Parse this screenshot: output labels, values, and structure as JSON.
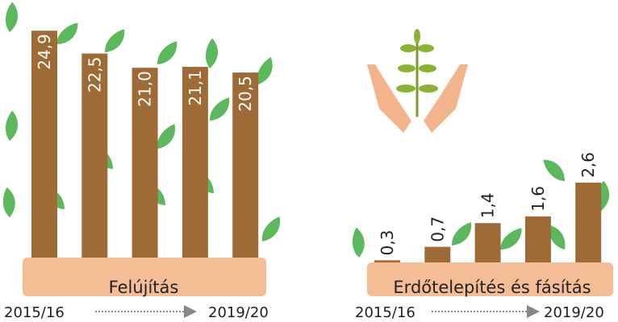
{
  "chart_data": [
    {
      "type": "bar",
      "title": "Felújítás",
      "categories": [
        "2015/16",
        null,
        null,
        null,
        "2019/20"
      ],
      "values": [
        24.9,
        22.5,
        21.0,
        21.1,
        20.5
      ],
      "value_labels": [
        "24,9",
        "22,5",
        "21,0",
        "21,1",
        "20,5"
      ],
      "color": "#9e6b37"
    },
    {
      "type": "bar",
      "title": "Erdőtelepítés és fásítás",
      "categories": [
        "2015/16",
        null,
        null,
        null,
        "2019/20"
      ],
      "values": [
        0.3,
        0.7,
        1.4,
        1.6,
        2.6
      ],
      "value_labels": [
        "0,3",
        "0,7",
        "1,4",
        "1,6",
        "2,6"
      ],
      "color": "#9e6b37"
    }
  ]
}
